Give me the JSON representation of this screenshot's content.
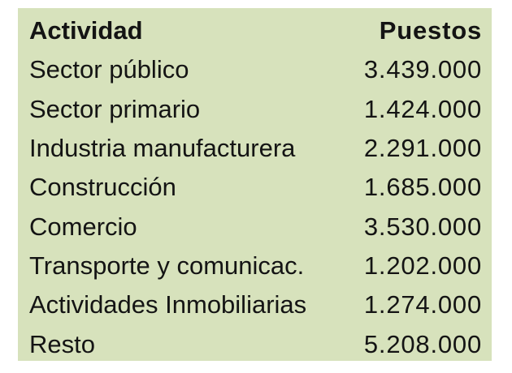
{
  "table": {
    "background_color": "#d7e2bc",
    "text_color": "#141414",
    "header": {
      "activity": "Actividad",
      "jobs": "Puestos"
    },
    "rows": [
      {
        "activity": "Sector público",
        "jobs": "3.439.000"
      },
      {
        "activity": "Sector primario",
        "jobs": "1.424.000"
      },
      {
        "activity": "Industria manufacturera",
        "jobs": "2.291.000"
      },
      {
        "activity": "Construcción",
        "jobs": "1.685.000"
      },
      {
        "activity": "Comercio",
        "jobs": "3.530.000"
      },
      {
        "activity": "Transporte y comunicac.",
        "jobs": "1.202.000"
      },
      {
        "activity": "Actividades Inmobiliarias",
        "jobs": "1.274.000"
      },
      {
        "activity": "Resto",
        "jobs": "5.208.000"
      }
    ]
  },
  "chart_data": {
    "type": "table",
    "columns": [
      "Actividad",
      "Puestos"
    ],
    "categories": [
      "Sector público",
      "Sector primario",
      "Industria manufacturera",
      "Construcción",
      "Comercio",
      "Transporte y comunicac.",
      "Actividades Inmobiliarias",
      "Resto"
    ],
    "values": [
      3439000,
      1424000,
      2291000,
      1685000,
      3530000,
      1202000,
      1274000,
      5208000
    ]
  }
}
